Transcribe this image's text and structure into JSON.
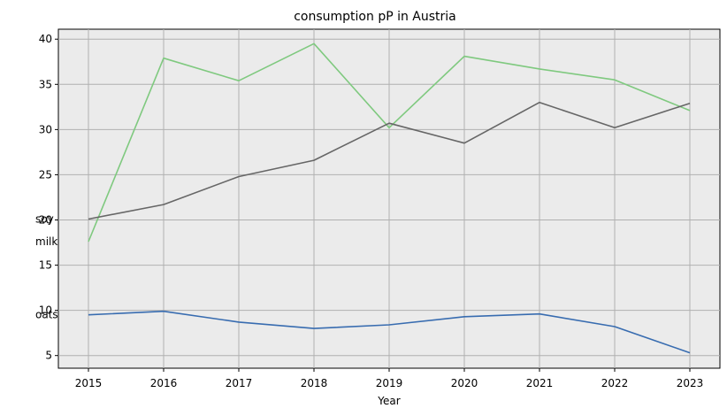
{
  "chart_data": {
    "type": "line",
    "title": "consumption pP in Austria",
    "xlabel": "Year",
    "ylabel": "",
    "x": [
      2015,
      2016,
      2017,
      2018,
      2019,
      2020,
      2021,
      2022,
      2023
    ],
    "xlim": [
      2014.6,
      2023.4
    ],
    "ylim": [
      3.6,
      41.1
    ],
    "yticks": [
      5,
      10,
      15,
      20,
      25,
      30,
      35,
      40
    ],
    "grid": true,
    "series": [
      {
        "name": "milk",
        "color": "#7fc97f",
        "values": [
          17.6,
          37.9,
          35.4,
          39.5,
          30.2,
          38.1,
          36.7,
          35.5,
          32.1
        ]
      },
      {
        "name": "soy",
        "color": "#666666",
        "values": [
          20.1,
          21.7,
          24.8,
          26.6,
          30.7,
          28.5,
          33.0,
          30.2,
          32.9
        ]
      },
      {
        "name": "oats",
        "color": "#386cb0",
        "values": [
          9.5,
          9.9,
          8.7,
          8.0,
          8.4,
          9.3,
          9.6,
          8.2,
          5.3
        ]
      }
    ]
  }
}
